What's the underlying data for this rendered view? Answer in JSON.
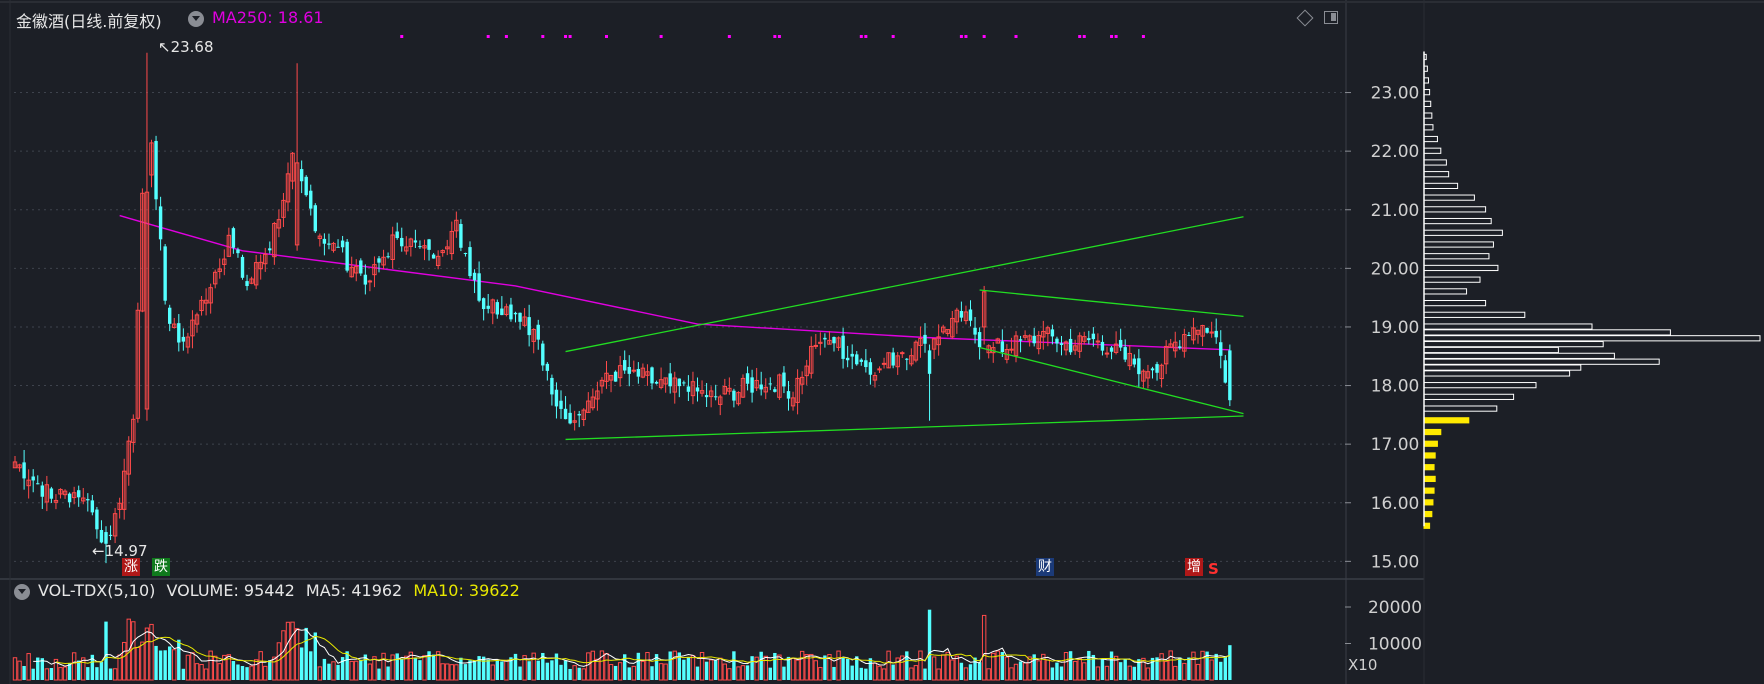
{
  "header": {
    "title": "金徽酒(日线.前复权)",
    "ma_label": "MA250:",
    "ma_value": "18.61",
    "diamond_icon": "diamond-icon",
    "panel_icon": "panel-toggle-icon"
  },
  "volume_header": {
    "title": "VOL-TDX(5,10)",
    "volume": "VOLUME: 95442",
    "ma5": "MA5: 41962",
    "ma10": "MA10: 39622"
  },
  "markers": {
    "rise": "涨",
    "fall": "跌",
    "finance": "财",
    "increase": "增",
    "s": "S"
  },
  "annotations": {
    "high": "23.68",
    "low": "14.97"
  },
  "x10": "X10",
  "colors": {
    "background": "#1c1f26",
    "up": "#ff4a4a",
    "down": "#54ffff",
    "ma250": "#e000e0",
    "trendline": "#22dd22",
    "vol_ma5": "#ffffff",
    "vol_ma10": "#e8e800",
    "profile": "#ffffff",
    "profile_low": "#ffea00",
    "signal": "#ff00ff"
  },
  "chart_data": [
    {
      "type": "candlestick",
      "title": "金徽酒(日线.前复权)",
      "ylim": [
        14.75,
        23.75
      ],
      "yticks": [
        "23.00",
        "22.00",
        "21.00",
        "20.00",
        "19.00",
        "18.00",
        "17.00",
        "16.00",
        "15.00"
      ],
      "ytick_values": [
        23,
        22,
        21,
        20,
        19,
        18,
        17,
        16,
        15
      ],
      "bars": 270,
      "ma250": {
        "name": "MA250",
        "last": 18.61,
        "points": [
          [
            23,
            20.9
          ],
          [
            50,
            20.3
          ],
          [
            110,
            19.7
          ],
          [
            150,
            19.05
          ],
          [
            200,
            18.82
          ],
          [
            267,
            18.61
          ]
        ]
      },
      "anchors": [
        [
          0,
          16.7
        ],
        [
          8,
          16.1
        ],
        [
          15,
          16.2
        ],
        [
          20,
          15.3
        ],
        [
          23,
          16.1
        ],
        [
          26,
          17.5
        ],
        [
          28,
          21.3
        ],
        [
          30,
          22.2
        ],
        [
          33,
          19.5
        ],
        [
          36,
          18.6
        ],
        [
          41,
          19.4
        ],
        [
          47,
          20.5
        ],
        [
          51,
          19.7
        ],
        [
          56,
          20.4
        ],
        [
          61,
          21.8
        ],
        [
          63,
          21.4
        ],
        [
          67,
          20.6
        ],
        [
          72,
          20.2
        ],
        [
          78,
          19.8
        ],
        [
          84,
          20.6
        ],
        [
          91,
          20.2
        ],
        [
          97,
          20.7
        ],
        [
          101,
          19.8
        ],
        [
          103,
          19.4
        ],
        [
          108,
          19.3
        ],
        [
          112,
          19.2
        ],
        [
          115,
          18.7
        ],
        [
          118,
          17.8
        ],
        [
          122,
          17.5
        ],
        [
          126,
          17.7
        ],
        [
          130,
          18.2
        ],
        [
          136,
          18.2
        ],
        [
          142,
          18.0
        ],
        [
          149,
          17.9
        ],
        [
          154,
          17.8
        ],
        [
          160,
          17.95
        ],
        [
          166,
          18.1
        ],
        [
          171,
          17.9
        ],
        [
          174,
          18.4
        ],
        [
          178,
          18.9
        ],
        [
          182,
          18.6
        ],
        [
          186,
          18.4
        ],
        [
          190,
          18.3
        ],
        [
          195,
          18.6
        ],
        [
          200,
          18.7
        ],
        [
          204,
          19.0
        ],
        [
          208,
          19.2
        ],
        [
          214,
          18.6
        ],
        [
          220,
          18.7
        ],
        [
          226,
          18.85
        ],
        [
          232,
          18.7
        ],
        [
          238,
          18.8
        ],
        [
          243,
          18.5
        ],
        [
          248,
          18.3
        ],
        [
          252,
          18.4
        ],
        [
          256,
          18.8
        ],
        [
          259,
          19.05
        ],
        [
          262,
          19.0
        ],
        [
          265,
          18.65
        ],
        [
          267,
          17.8
        ]
      ],
      "special_bars": [
        {
          "i": 29,
          "o": 17.6,
          "h": 23.68,
          "l": 17.4,
          "c": 21.3
        },
        {
          "i": 62,
          "o": 20.4,
          "h": 23.5,
          "l": 20.3,
          "c": 21.8
        },
        {
          "i": 20,
          "o": 15.5,
          "h": 15.6,
          "l": 14.97,
          "c": 15.3
        },
        {
          "i": 201,
          "o": 18.6,
          "h": 18.7,
          "l": 17.4,
          "c": 18.2
        },
        {
          "i": 213,
          "o": 19.0,
          "h": 19.7,
          "l": 18.7,
          "c": 19.6
        },
        {
          "i": 267,
          "o": 18.6,
          "h": 18.7,
          "l": 17.65,
          "c": 17.75
        }
      ],
      "trendlines": [
        {
          "from": [
            121,
            18.58
          ],
          "to": [
            270,
            20.88
          ]
        },
        {
          "from": [
            121,
            17.08
          ],
          "to": [
            270,
            17.48
          ]
        },
        {
          "from": [
            212,
            19.63
          ],
          "to": [
            270,
            19.18
          ]
        },
        {
          "from": [
            212,
            18.65
          ],
          "to": [
            270,
            17.52
          ]
        }
      ],
      "annotations": [
        {
          "label": "23.68",
          "i": 29,
          "y": 23.68
        },
        {
          "label": "14.97",
          "i": 20,
          "y": 14.97
        }
      ],
      "signal_bars": [
        85,
        104,
        108,
        116,
        121,
        122,
        130,
        142,
        157,
        167,
        168,
        186,
        187,
        193,
        208,
        209,
        213,
        220,
        234,
        235,
        241,
        242,
        248
      ]
    },
    {
      "type": "bar",
      "title": "VOL-TDX(5,10)",
      "yticks": [
        "20000",
        "10000"
      ],
      "ytick_values": [
        20000,
        10000
      ],
      "ylim": [
        0,
        27000
      ],
      "volume_last": 95442,
      "ma5_last": 41962,
      "ma10_last": 39622,
      "scale_label": "X10"
    },
    {
      "type": "bar",
      "title": "",
      "orientation": "horizontal",
      "ylim": [
        14.75,
        23.75
      ],
      "bins": [
        [
          23.6,
          2
        ],
        [
          23.4,
          3
        ],
        [
          23.2,
          4
        ],
        [
          23.0,
          5
        ],
        [
          22.8,
          6
        ],
        [
          22.6,
          7
        ],
        [
          22.4,
          8
        ],
        [
          22.2,
          12
        ],
        [
          22.0,
          15
        ],
        [
          21.8,
          20
        ],
        [
          21.6,
          22
        ],
        [
          21.4,
          30
        ],
        [
          21.2,
          45
        ],
        [
          21.0,
          55
        ],
        [
          20.8,
          60
        ],
        [
          20.6,
          70
        ],
        [
          20.4,
          62
        ],
        [
          20.2,
          58
        ],
        [
          20.0,
          66
        ],
        [
          19.8,
          50
        ],
        [
          19.6,
          38
        ],
        [
          19.4,
          55
        ],
        [
          19.2,
          90
        ],
        [
          19.0,
          150
        ],
        [
          18.9,
          220
        ],
        [
          18.8,
          300
        ],
        [
          18.7,
          160
        ],
        [
          18.6,
          120
        ],
        [
          18.5,
          170
        ],
        [
          18.4,
          210
        ],
        [
          18.3,
          140
        ],
        [
          18.2,
          130
        ],
        [
          18.0,
          100
        ],
        [
          17.8,
          80
        ],
        [
          17.6,
          65
        ],
        [
          17.4,
          40
        ],
        [
          17.2,
          15
        ],
        [
          17.0,
          12
        ],
        [
          16.8,
          10
        ],
        [
          16.6,
          9
        ],
        [
          16.4,
          10
        ],
        [
          16.2,
          9
        ],
        [
          16.0,
          8
        ],
        [
          15.8,
          7
        ],
        [
          15.6,
          5
        ]
      ],
      "highlight_below": 17.5
    }
  ]
}
